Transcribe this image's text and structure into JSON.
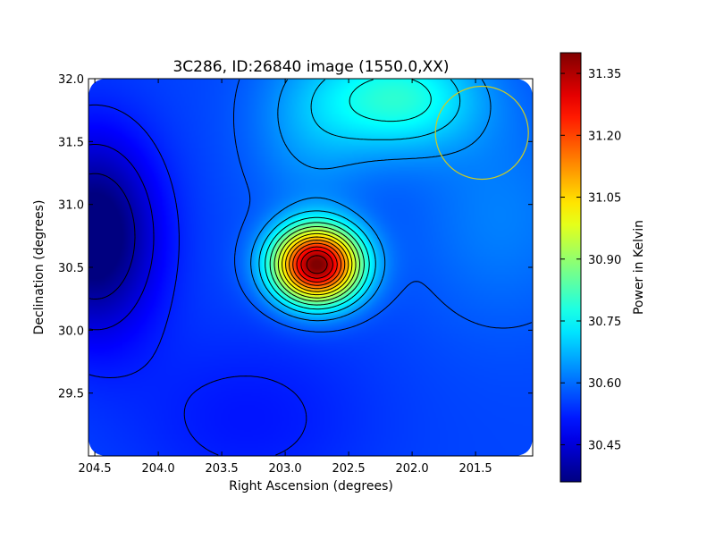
{
  "chart_data": {
    "type": "heatmap",
    "title": "3C286, ID:26840 image (1550.0,XX)",
    "xlabel": "Right Ascension (degrees)",
    "ylabel": "Declination (degrees)",
    "colorbar_label": "Power in Kelvin",
    "colormap": "jet",
    "xlim": [
      204.55,
      201.05
    ],
    "ylim": [
      29.5,
      32.0
    ],
    "x_ticks": [
      "204.5",
      "204.0",
      "203.5",
      "203.0",
      "202.5",
      "202.0",
      "201.5"
    ],
    "x_tick_values": [
      204.5,
      204.0,
      203.5,
      203.0,
      202.5,
      202.0,
      201.5
    ],
    "y_ticks": [
      "29.5",
      "30.0",
      "30.5",
      "31.0",
      "31.5",
      "32.0"
    ],
    "y_tick_values": [
      29.5,
      30.0,
      30.5,
      31.0,
      31.5,
      32.0
    ],
    "color_range": [
      30.36,
      31.4
    ],
    "colorbar_ticks": [
      "30.45",
      "30.60",
      "30.75",
      "30.90",
      "31.05",
      "31.20",
      "31.35"
    ],
    "colorbar_tick_values": [
      30.45,
      30.6,
      30.75,
      30.9,
      31.05,
      31.2,
      31.35
    ],
    "peak": {
      "ra": 202.75,
      "dec": 30.52,
      "value": 31.4
    },
    "minimum": {
      "ra": 204.5,
      "dec": 30.75,
      "value": 30.36
    },
    "secondary_max": {
      "ra": 202.1,
      "dec": 31.85,
      "value": 30.78
    },
    "contours": "black iso-lines",
    "marker_circle": {
      "ra": 201.45,
      "dec": 31.57,
      "color": "#cccc22"
    }
  }
}
